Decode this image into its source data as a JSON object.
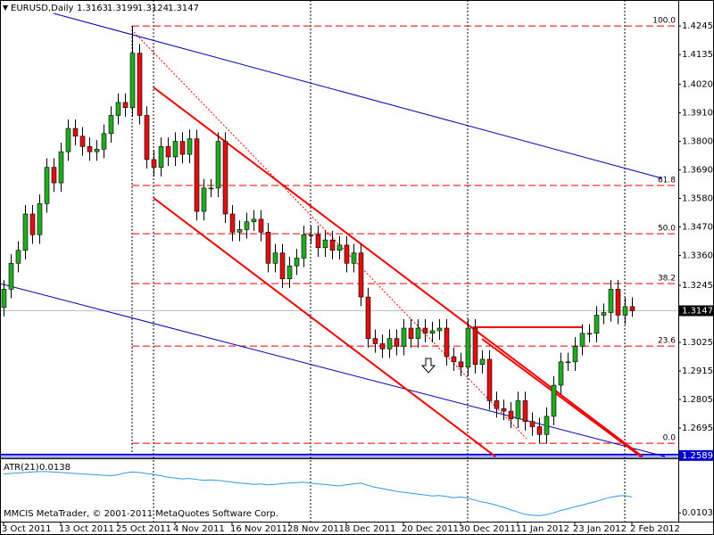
{
  "chart_data": {
    "type": "candlestick",
    "symbol": "EURUSD,Daily",
    "categories": [
      "3 Oct 2011",
      null,
      null,
      null,
      null,
      null,
      null,
      null,
      "13 Oct 2011",
      null,
      null,
      null,
      null,
      null,
      null,
      null,
      "25 Oct 2011",
      null,
      null,
      null,
      null,
      null,
      null,
      null,
      "4 Nov 2011",
      null,
      null,
      null,
      null,
      null,
      null,
      null,
      "16 Nov 2011",
      null,
      null,
      null,
      null,
      null,
      null,
      null,
      "28 Nov 2011",
      null,
      null,
      null,
      null,
      null,
      null,
      null,
      "8 Dec 2011",
      null,
      null,
      null,
      null,
      null,
      null,
      null,
      "20 Dec 2011",
      null,
      null,
      null,
      null,
      null,
      null,
      null,
      "30 Dec 2011",
      null,
      null,
      null,
      null,
      null,
      null,
      null,
      "11 Jan 2012",
      null,
      null,
      null,
      null,
      null,
      null,
      null,
      "23 Jan 2012",
      null,
      null,
      null,
      null,
      null,
      null,
      null,
      "2 Feb 2012"
    ],
    "candles": {
      "open": [
        1.316,
        1.323,
        1.333,
        1.338,
        1.352,
        1.344,
        1.356,
        1.37,
        1.364,
        1.376,
        1.385,
        1.382,
        1.378,
        1.376,
        1.377,
        1.383,
        1.39,
        1.395,
        1.393,
        1.414,
        1.39,
        1.373,
        1.37,
        1.378,
        1.374,
        1.38,
        1.375,
        1.381,
        1.353,
        1.362,
        1.362,
        1.38,
        1.352,
        1.345,
        1.346,
        1.349,
        1.35,
        1.345,
        1.333,
        1.337,
        1.327,
        1.332,
        1.335,
        1.344,
        1.344,
        1.339,
        1.342,
        1.338,
        1.34,
        1.333,
        1.337,
        1.32,
        1.304,
        1.302,
        1.3,
        1.304,
        1.301,
        1.308,
        1.304,
        1.308,
        1.306,
        1.307,
        1.308,
        1.297,
        1.295,
        1.293,
        1.308,
        1.294,
        1.296,
        1.28,
        1.277,
        1.276,
        1.273,
        1.28,
        1.272,
        1.27,
        1.267,
        1.274,
        1.286,
        1.295,
        1.295,
        1.301,
        1.306,
        1.306,
        1.313,
        1.314,
        1.323,
        1.313,
        1.3163
      ],
      "high": [
        1.3265,
        1.3365,
        1.3415,
        1.3555,
        1.3555,
        1.3595,
        1.3735,
        1.3735,
        1.3795,
        1.3885,
        1.3885,
        1.3855,
        1.3815,
        1.3805,
        1.3865,
        1.3935,
        1.3985,
        1.3985,
        1.4245,
        1.4175,
        1.3935,
        1.3765,
        1.3815,
        1.3815,
        1.3835,
        1.3835,
        1.3845,
        1.3845,
        1.3655,
        1.3655,
        1.3835,
        1.3835,
        1.3555,
        1.3495,
        1.3525,
        1.3535,
        1.3535,
        1.3485,
        1.3405,
        1.3405,
        1.3355,
        1.3385,
        1.3475,
        1.3475,
        1.3475,
        1.3455,
        1.3455,
        1.3435,
        1.3435,
        1.3405,
        1.3405,
        1.3235,
        1.3075,
        1.3055,
        1.3075,
        1.3075,
        1.3115,
        1.3115,
        1.3115,
        1.3115,
        1.3105,
        1.3115,
        1.3115,
        1.3005,
        1.2985,
        1.3115,
        1.3115,
        1.2995,
        1.2995,
        1.2835,
        1.2805,
        1.2795,
        1.2835,
        1.2835,
        1.2755,
        1.2735,
        1.2775,
        1.2895,
        1.2985,
        1.2985,
        1.3045,
        1.3095,
        1.3095,
        1.3165,
        1.3175,
        1.3265,
        1.3265,
        1.3198,
        1.3199
      ],
      "low": [
        1.3125,
        1.3195,
        1.3295,
        1.3345,
        1.3405,
        1.3405,
        1.3525,
        1.3605,
        1.3605,
        1.3725,
        1.3785,
        1.3745,
        1.3725,
        1.3725,
        1.3735,
        1.3795,
        1.3865,
        1.3895,
        1.3895,
        1.3865,
        1.3695,
        1.3665,
        1.3665,
        1.3705,
        1.3705,
        1.3715,
        1.3715,
        1.3495,
        1.3495,
        1.3585,
        1.3585,
        1.3485,
        1.3415,
        1.3415,
        1.3425,
        1.3455,
        1.3415,
        1.3295,
        1.3295,
        1.3235,
        1.3235,
        1.3285,
        1.3315,
        1.3405,
        1.3355,
        1.3355,
        1.3345,
        1.3345,
        1.3295,
        1.3295,
        1.3165,
        1.3005,
        1.2985,
        1.2965,
        1.2965,
        1.2975,
        1.2975,
        1.3005,
        1.3005,
        1.3025,
        1.3025,
        1.3035,
        1.2935,
        1.2915,
        1.2895,
        1.2895,
        1.2905,
        1.2905,
        1.2765,
        1.2735,
        1.2725,
        1.2695,
        1.2695,
        1.2685,
        1.2665,
        1.2635,
        1.2635,
        1.2705,
        1.2825,
        1.2915,
        1.2915,
        1.2975,
        1.3025,
        1.3025,
        1.3095,
        1.3105,
        1.3095,
        1.3095,
        1.3124
      ],
      "close": [
        1.323,
        1.333,
        1.338,
        1.352,
        1.344,
        1.356,
        1.37,
        1.364,
        1.376,
        1.385,
        1.382,
        1.378,
        1.376,
        1.377,
        1.383,
        1.39,
        1.395,
        1.393,
        1.414,
        1.39,
        1.373,
        1.37,
        1.378,
        1.374,
        1.38,
        1.375,
        1.381,
        1.353,
        1.362,
        1.362,
        1.38,
        1.352,
        1.345,
        1.346,
        1.349,
        1.35,
        1.345,
        1.333,
        1.337,
        1.327,
        1.332,
        1.335,
        1.344,
        1.344,
        1.339,
        1.342,
        1.338,
        1.34,
        1.333,
        1.337,
        1.32,
        1.304,
        1.302,
        1.3,
        1.304,
        1.301,
        1.308,
        1.304,
        1.308,
        1.306,
        1.307,
        1.308,
        1.297,
        1.295,
        1.293,
        1.308,
        1.294,
        1.296,
        1.28,
        1.277,
        1.276,
        1.273,
        1.28,
        1.272,
        1.27,
        1.267,
        1.274,
        1.286,
        1.295,
        1.295,
        1.301,
        1.306,
        1.306,
        1.313,
        1.314,
        1.323,
        1.313,
        1.3163,
        1.3147
      ]
    },
    "up_color": "#22aa22",
    "down_color": "#dd1111",
    "ylim": [
      1.2585,
      1.4345
    ],
    "yticks": [
      1.4245,
      1.4135,
      {
        "value": 1.402,
        "label": "1.4020"
      },
      {
        "value": 1.391,
        "label": "1.3910"
      },
      {
        "value": 1.38,
        "label": "1.3800"
      },
      {
        "value": 1.369,
        "label": "1.3690"
      },
      {
        "value": 1.358,
        "label": "1.3580"
      },
      {
        "value": 1.347,
        "label": "1.3470"
      },
      {
        "value": 1.336,
        "label": "1.3360"
      },
      1.3245,
      1.3025,
      1.2915,
      1.2805,
      1.2695
    ],
    "support_line": 1.2589,
    "fib_levels": [
      {
        "label": "100.0",
        "price": 1.4245
      },
      {
        "label": "61.8",
        "price": 1.363
      },
      {
        "label": "50.0",
        "price": 1.3444
      },
      {
        "label": "38.2",
        "price": 1.3252
      },
      {
        "label": "23.6",
        "price": 1.3011
      },
      {
        "label": "0.0",
        "price": 1.2636
      }
    ],
    "atr": {
      "label": "ATR(21)",
      "color": "#3399dd",
      "values": [
        0.0188,
        0.0189,
        0.019,
        0.0191,
        0.0192,
        0.0193,
        0.0193,
        0.0192,
        0.0191,
        0.019,
        0.0189,
        0.0188,
        0.0187,
        0.0186,
        0.0185,
        0.0184,
        0.0186,
        0.019,
        0.0192,
        0.0191,
        0.0189,
        0.0187,
        0.0184,
        0.0181,
        0.0179,
        0.0177,
        0.0178,
        0.0176,
        0.0174,
        0.0175,
        0.0174,
        0.0172,
        0.017,
        0.0168,
        0.0167,
        0.0165,
        0.0166,
        0.0164,
        0.0165,
        0.0167,
        0.0168,
        0.0169,
        0.017,
        0.0168,
        0.0166,
        0.0165,
        0.0163,
        0.0162,
        0.0164,
        0.0166,
        0.0168,
        0.0163,
        0.0159,
        0.0156,
        0.0153,
        0.015,
        0.0148,
        0.0146,
        0.0144,
        0.0142,
        0.014,
        0.0141,
        0.0139,
        0.0136,
        0.0138,
        0.0135,
        0.0131,
        0.0127,
        0.0124,
        0.012,
        0.0115,
        0.011,
        0.0105,
        0.01,
        0.0098,
        0.0097,
        0.0099,
        0.0103,
        0.0108,
        0.0112,
        0.0116,
        0.012,
        0.0124,
        0.0128,
        0.0133,
        0.0137,
        0.014,
        0.0141,
        0.0138
      ],
      "ylim": [
        0.0084,
        0.022
      ],
      "yticks": [
        0.0103
      ]
    },
    "footer": "MMCIS MetaTrader, © 2001-2011 MetaQuotes Software Corp."
  }
}
